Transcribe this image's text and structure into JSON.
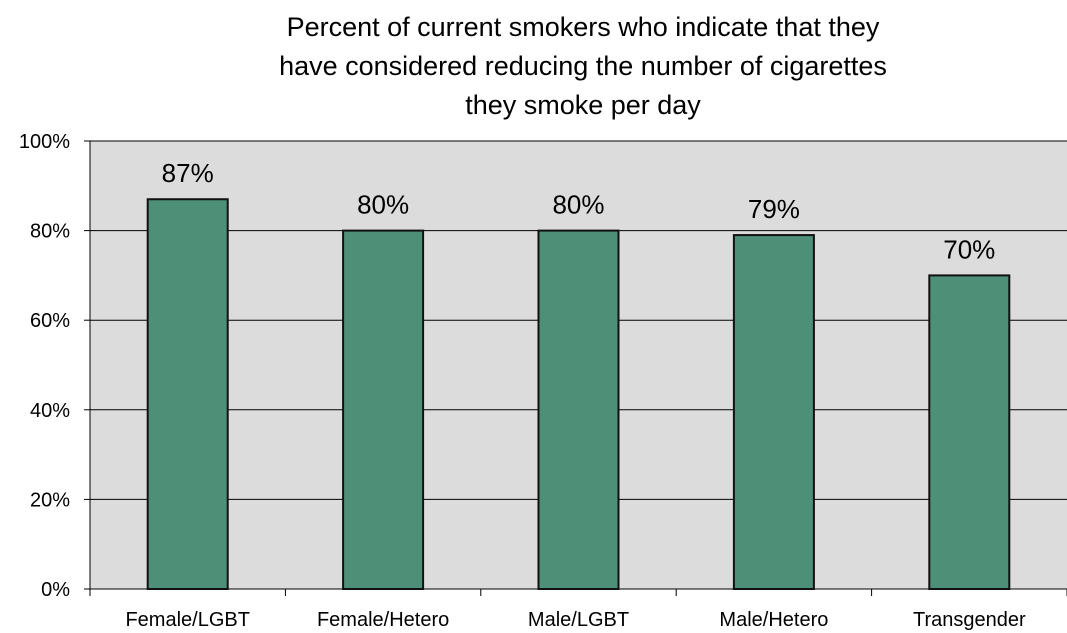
{
  "chart_data": {
    "type": "bar",
    "title_lines": [
      "Percent of current smokers who indicate that they",
      "have considered reducing the number of cigarettes",
      "they smoke per day"
    ],
    "categories": [
      "Female/LGBT",
      "Female/Hetero",
      "Male/LGBT",
      "Male/Hetero",
      "Transgender"
    ],
    "values": [
      87,
      80,
      80,
      79,
      70
    ],
    "data_labels": [
      "87%",
      "80%",
      "80%",
      "79%",
      "70%"
    ],
    "ylim": [
      0,
      100
    ],
    "yticks": [
      0,
      20,
      40,
      60,
      80,
      100
    ],
    "ytick_labels": [
      "0%",
      "20%",
      "40%",
      "60%",
      "80%",
      "100%"
    ],
    "grid": true,
    "legend": "none",
    "colors": {
      "bar_fill": "#4e8f78",
      "bar_stroke": "#111111",
      "plot_background": "#dcdcdc",
      "gridline": "#000000"
    }
  }
}
